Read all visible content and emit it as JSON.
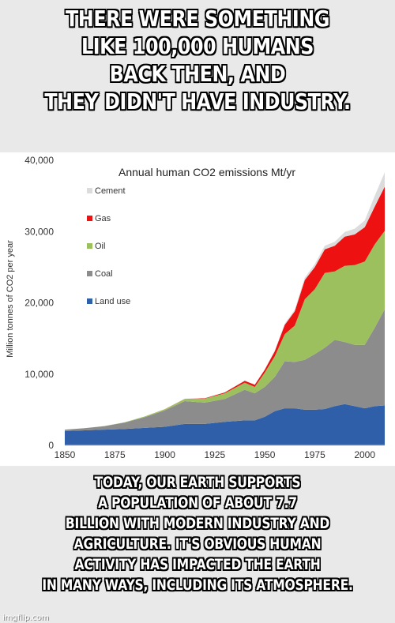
{
  "top_caption": [
    "THERE WERE SOMETHING",
    "LIKE 100,000 HUMANS",
    "BACK THEN, AND",
    "THEY DIDN'T HAVE INDUSTRY."
  ],
  "bottom_caption": [
    "TODAY, OUR EARTH SUPPORTS",
    "A POPULATION OF ABOUT 7.7",
    "BILLION WITH MODERN INDUSTRY AND",
    "AGRICULTURE. IT'S OBVIOUS HUMAN",
    "ACTIVITY HAS IMPACTED THE EARTH",
    "IN MANY WAYS, INCLUDING ITS ATMOSPHERE."
  ],
  "watermark": "imgflip.com",
  "chart_data": {
    "type": "area",
    "stacked": true,
    "title": "Annual human CO2 emissions  Mt/yr",
    "xlabel": "",
    "ylabel": "Million tonnes of CO2 per year",
    "xlim": [
      1850,
      2010
    ],
    "ylim": [
      0,
      40000
    ],
    "x_ticks": [
      1850,
      1875,
      1900,
      1925,
      1950,
      1975,
      2000
    ],
    "x_tick_labels": [
      "1850",
      "1875",
      "1900",
      "1925",
      "1950",
      "1975",
      "2000"
    ],
    "y_ticks": [
      0,
      10000,
      20000,
      30000,
      40000
    ],
    "y_tick_labels": [
      "0",
      "10,000",
      "20,000",
      "30,000",
      "40,000"
    ],
    "legend_position": "top-left",
    "x": [
      1850,
      1860,
      1870,
      1880,
      1890,
      1900,
      1910,
      1920,
      1930,
      1940,
      1945,
      1950,
      1955,
      1960,
      1965,
      1970,
      1975,
      1980,
      1985,
      1990,
      1995,
      2000,
      2005,
      2010
    ],
    "series": [
      {
        "name": "Land use",
        "color": "#2e5fa8",
        "values": [
          2000,
          2100,
          2200,
          2300,
          2450,
          2600,
          3000,
          3000,
          3300,
          3500,
          3500,
          4000,
          4800,
          5200,
          5200,
          5000,
          5000,
          5100,
          5500,
          5800,
          5500,
          5200,
          5500,
          5600
        ]
      },
      {
        "name": "Coal",
        "color": "#8c8c8c",
        "values": [
          200,
          300,
          500,
          900,
          1500,
          2300,
          3200,
          3000,
          3200,
          4300,
          3800,
          4200,
          4800,
          6600,
          6500,
          7000,
          7800,
          8600,
          9300,
          8700,
          8600,
          8900,
          11000,
          13500
        ]
      },
      {
        "name": "Oil",
        "color": "#9cc05e",
        "values": [
          0,
          0,
          20,
          50,
          100,
          150,
          300,
          550,
          800,
          1000,
          900,
          2000,
          2900,
          3800,
          5100,
          8500,
          9100,
          10500,
          9600,
          10700,
          11200,
          11700,
          11700,
          11000
        ]
      },
      {
        "name": "Gas",
        "color": "#ee1111",
        "values": [
          0,
          0,
          0,
          0,
          0,
          10,
          30,
          50,
          120,
          250,
          300,
          400,
          700,
          1300,
          2000,
          2700,
          3100,
          3300,
          3600,
          4100,
          4300,
          4800,
          5300,
          6200
        ]
      },
      {
        "name": "Cement",
        "color": "#dcdcdc",
        "values": [
          0,
          0,
          0,
          0,
          0,
          10,
          20,
          30,
          40,
          50,
          50,
          80,
          120,
          180,
          250,
          330,
          420,
          500,
          550,
          650,
          800,
          950,
          1500,
          2000
        ]
      }
    ]
  }
}
